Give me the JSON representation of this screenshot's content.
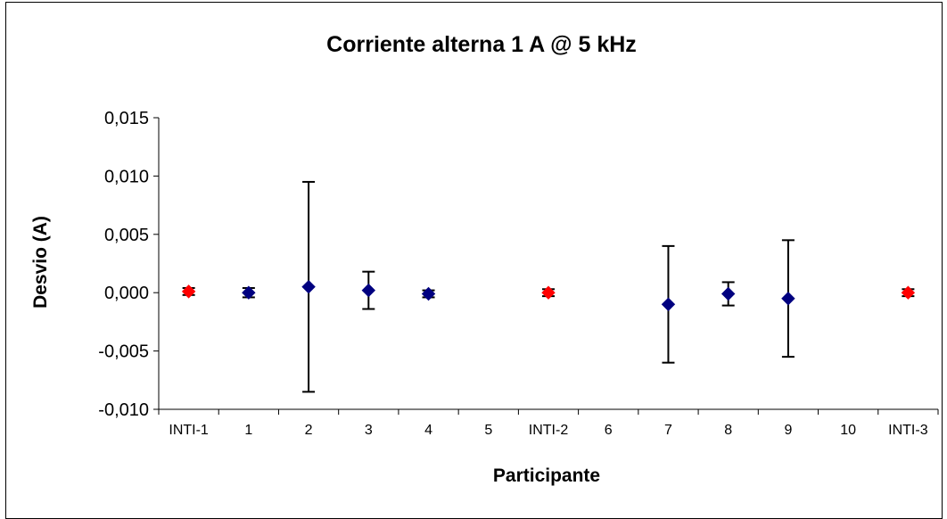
{
  "chart_data": {
    "type": "scatter",
    "title": "Corriente alterna 1 A @ 5 kHz",
    "xlabel": "Participante",
    "ylabel": "Desvio (A)",
    "categories": [
      "INTI-1",
      "1",
      "2",
      "3",
      "4",
      "5",
      "INTI-2",
      "6",
      "7",
      "8",
      "9",
      "10",
      "INTI-3"
    ],
    "ylim": [
      -0.01,
      0.015
    ],
    "yticks": [
      -0.01,
      -0.005,
      0.0,
      0.005,
      0.01,
      0.015
    ],
    "ytick_labels": [
      "-0,010",
      "-0,005",
      "0,000",
      "0,005",
      "0,010",
      "0,015"
    ],
    "grid": false,
    "legend": "none",
    "series": [
      {
        "color": "#ff0000",
        "marker": "diamond",
        "points": [
          {
            "x": "INTI-1",
            "y": 0.0001,
            "err_low": 0.0003,
            "err_high": 0.0003
          },
          {
            "x": "INTI-2",
            "y": 0.0,
            "err_low": 0.0003,
            "err_high": 0.0003
          },
          {
            "x": "INTI-3",
            "y": 0.0,
            "err_low": 0.0003,
            "err_high": 0.0003
          }
        ]
      },
      {
        "color": "#000080",
        "marker": "diamond",
        "points": [
          {
            "x": "1",
            "y": 0.0,
            "err_low": 0.0004,
            "err_high": 0.0004
          },
          {
            "x": "2",
            "y": 0.0005,
            "err_low": 0.009,
            "err_high": 0.009
          },
          {
            "x": "3",
            "y": 0.0002,
            "err_low": 0.0016,
            "err_high": 0.0016
          },
          {
            "x": "4",
            "y": -0.0001,
            "err_low": 0.0003,
            "err_high": 0.0003
          },
          {
            "x": "7",
            "y": -0.001,
            "err_low": 0.005,
            "err_high": 0.005
          },
          {
            "x": "8",
            "y": -0.0001,
            "err_low": 0.001,
            "err_high": 0.001
          },
          {
            "x": "9",
            "y": -0.0005,
            "err_low": 0.005,
            "err_high": 0.005
          }
        ]
      }
    ]
  }
}
